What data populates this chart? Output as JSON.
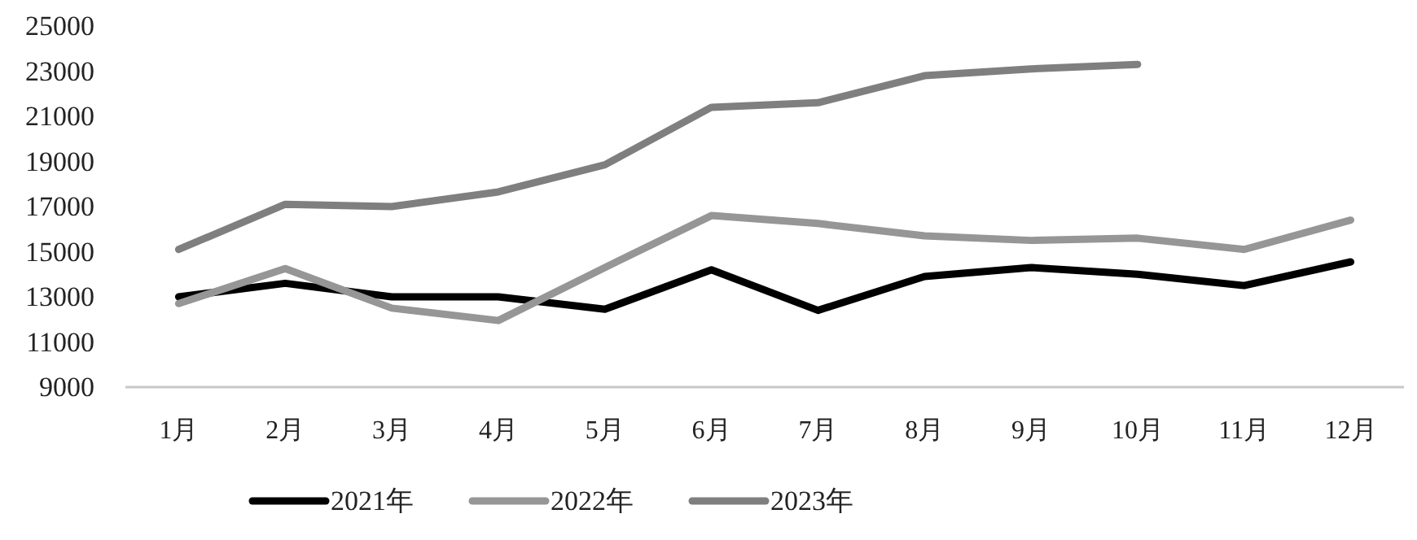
{
  "chart_data": {
    "type": "line",
    "categories": [
      "1月",
      "2月",
      "3月",
      "4月",
      "5月",
      "6月",
      "7月",
      "8月",
      "9月",
      "10月",
      "11月",
      "12月"
    ],
    "series": [
      {
        "name": "2021年",
        "color": "#000000",
        "values": [
          13000,
          13600,
          13000,
          13000,
          12450,
          14200,
          12400,
          13900,
          14300,
          14000,
          13500,
          14550
        ]
      },
      {
        "name": "2022年",
        "color": "#969696",
        "values": [
          12700,
          14250,
          12500,
          11950,
          14300,
          16600,
          16250,
          15700,
          15500,
          15600,
          15100,
          16400
        ]
      },
      {
        "name": "2023年",
        "color": "#7f7f7f",
        "values": [
          15100,
          17100,
          17000,
          17650,
          18850,
          21400,
          21600,
          22800,
          23100,
          23300,
          null,
          null
        ]
      }
    ],
    "ylim": [
      9000,
      25000
    ],
    "yticks": [
      9000,
      11000,
      13000,
      15000,
      17000,
      19000,
      21000,
      23000,
      25000
    ],
    "grid": false,
    "legend": "bottom",
    "marker": "none",
    "line_style": "solid"
  }
}
